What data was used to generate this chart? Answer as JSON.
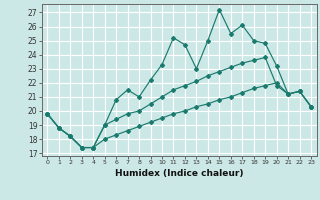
{
  "xlabel": "Humidex (Indice chaleur)",
  "bg_color": "#cce8e6",
  "grid_color": "#ffffff",
  "line_color": "#1a7a6e",
  "xlim": [
    -0.5,
    23.5
  ],
  "ylim": [
    16.8,
    27.6
  ],
  "x": [
    0,
    1,
    2,
    3,
    4,
    5,
    6,
    7,
    8,
    9,
    10,
    11,
    12,
    13,
    14,
    15,
    16,
    17,
    18,
    19,
    20,
    21,
    22,
    23
  ],
  "line1": [
    19.8,
    18.8,
    18.2,
    17.4,
    17.4,
    19.0,
    20.8,
    21.5,
    21.0,
    22.2,
    23.3,
    25.2,
    24.7,
    23.0,
    25.0,
    27.2,
    25.5,
    26.1,
    25.0,
    24.8,
    23.2,
    21.2,
    21.4,
    20.3
  ],
  "line2": [
    19.8,
    18.8,
    18.2,
    17.4,
    17.4,
    19.0,
    19.4,
    19.8,
    20.0,
    20.5,
    21.0,
    21.5,
    21.8,
    22.1,
    22.5,
    22.8,
    23.1,
    23.4,
    23.6,
    23.8,
    21.8,
    21.2,
    21.4,
    20.3
  ],
  "line3": [
    19.8,
    18.8,
    18.2,
    17.4,
    17.4,
    18.0,
    18.3,
    18.6,
    18.9,
    19.2,
    19.5,
    19.8,
    20.0,
    20.3,
    20.5,
    20.8,
    21.0,
    21.3,
    21.6,
    21.8,
    22.0,
    21.2,
    21.4,
    20.3
  ]
}
